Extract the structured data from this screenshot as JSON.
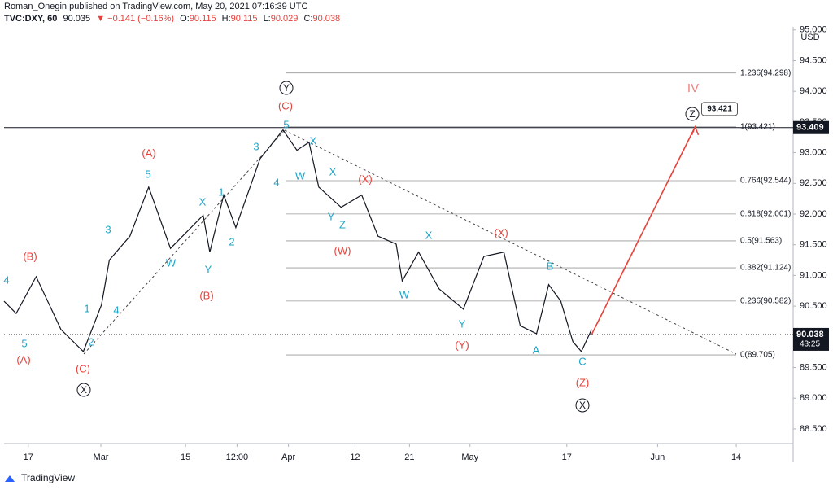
{
  "header": {
    "byline": "Roman_Onegin published on TradingView.com, May 20, 2021 07:16:39 UTC",
    "symbol": "TVC:DXY, 60",
    "last": "90.035",
    "change": "▼ −0.141 (−0.16%)",
    "ohlc": [
      {
        "k": "O:",
        "v": "90.115"
      },
      {
        "k": "H:",
        "v": "90.115"
      },
      {
        "k": "L:",
        "v": "90.029"
      },
      {
        "k": "C:",
        "v": "90.038"
      }
    ]
  },
  "footer": {
    "brand": "TradingView"
  },
  "chart_data": {
    "type": "line",
    "currency": "USD",
    "grid": false,
    "x": [
      44,
      46,
      49.3,
      53.4,
      57.1,
      60.1,
      61.4,
      64.8,
      67.9,
      71.5,
      76.9,
      78,
      80.3,
      82.3,
      86.3,
      90.1,
      92.4,
      94.4,
      96,
      99.7,
      103.1,
      105.8,
      108.8,
      109.8,
      112.5,
      115.9,
      119.9,
      123.3,
      126.6,
      129.3,
      132,
      134,
      136,
      138,
      139.4,
      141.1
    ],
    "series": [
      {
        "color": "#131722",
        "values": [
          90.58,
          90.38,
          90.98,
          90.12,
          89.76,
          90.52,
          91.25,
          91.64,
          92.44,
          91.44,
          91.98,
          91.38,
          92.31,
          91.78,
          92.9,
          93.37,
          93.04,
          93.17,
          92.44,
          92.11,
          92.31,
          91.64,
          91.51,
          90.91,
          91.38,
          90.78,
          90.45,
          91.31,
          91.38,
          90.18,
          90.05,
          90.85,
          90.58,
          89.92,
          89.76,
          90.12
        ]
      },
      {
        "color": "#e8413a",
        "x": [
          141.1,
          158.2
        ],
        "values": [
          90.038,
          93.421
        ]
      }
    ],
    "hline": 93.409,
    "countdown": "43:25",
    "fib_levels": [
      {
        "value": 94.298,
        "label": "1.236(94.298)"
      },
      {
        "value": 93.421,
        "label": "1(93.421)"
      },
      {
        "value": 92.544,
        "label": "0.764(92.544)"
      },
      {
        "value": 92.001,
        "label": "0.618(92.001)"
      },
      {
        "value": 91.563,
        "label": "0.5(91.563)"
      },
      {
        "value": 91.124,
        "label": "0.382(91.124)"
      },
      {
        "value": 90.582,
        "label": "0.236(90.582)"
      },
      {
        "value": 89.705,
        "label": "0(89.705)"
      }
    ],
    "wave_labels": [
      "4",
      "5",
      "1",
      "2",
      "3",
      "4",
      "5",
      "W",
      "X",
      "1",
      "2",
      "Y",
      "3",
      "4",
      "5",
      "X",
      "W",
      "X",
      "Y",
      "Z",
      "X",
      "W",
      "Y",
      "B",
      "A",
      "C",
      "(B)",
      "(A)",
      "(C)",
      "(A)",
      "(B)",
      "(C)",
      "(X)",
      "(W)",
      "(X)",
      "(Y)",
      "(Z)",
      "X",
      "Y",
      "X",
      "Z",
      "IV"
    ],
    "xlim": [
      44,
      174.4
    ],
    "xticks": [
      {
        "value": 48,
        "label": "17"
      },
      {
        "value": 60,
        "label": "Mar"
      },
      {
        "value": 74,
        "label": "15"
      },
      {
        "value": 82.5,
        "label": "12:00"
      },
      {
        "value": 91,
        "label": "Apr"
      },
      {
        "value": 102,
        "label": "12"
      },
      {
        "value": 111,
        "label": "21"
      },
      {
        "value": 121,
        "label": "May"
      },
      {
        "value": 137,
        "label": "17"
      },
      {
        "value": 152,
        "label": "Jun"
      },
      {
        "value": 165,
        "label": "14"
      }
    ],
    "ylim": [
      88.26,
      95.05
    ],
    "yticks": [
      {
        "value": 95,
        "label": "95.000"
      },
      {
        "value": 94.5,
        "label": "94.500"
      },
      {
        "value": 94,
        "label": "94.000"
      },
      {
        "value": 93.5,
        "label": "93.500"
      },
      {
        "value": 93,
        "label": "93.000"
      },
      {
        "value": 92.5,
        "label": "92.500"
      },
      {
        "value": 92,
        "label": "92.000"
      },
      {
        "value": 91.5,
        "label": "91.500"
      },
      {
        "value": 91,
        "label": "91.000"
      },
      {
        "value": 90.5,
        "label": "90.500"
      },
      {
        "value": 89.5,
        "label": "89.500"
      },
      {
        "value": 89,
        "label": "89.000"
      },
      {
        "value": 88.5,
        "label": "88.500"
      }
    ]
  }
}
